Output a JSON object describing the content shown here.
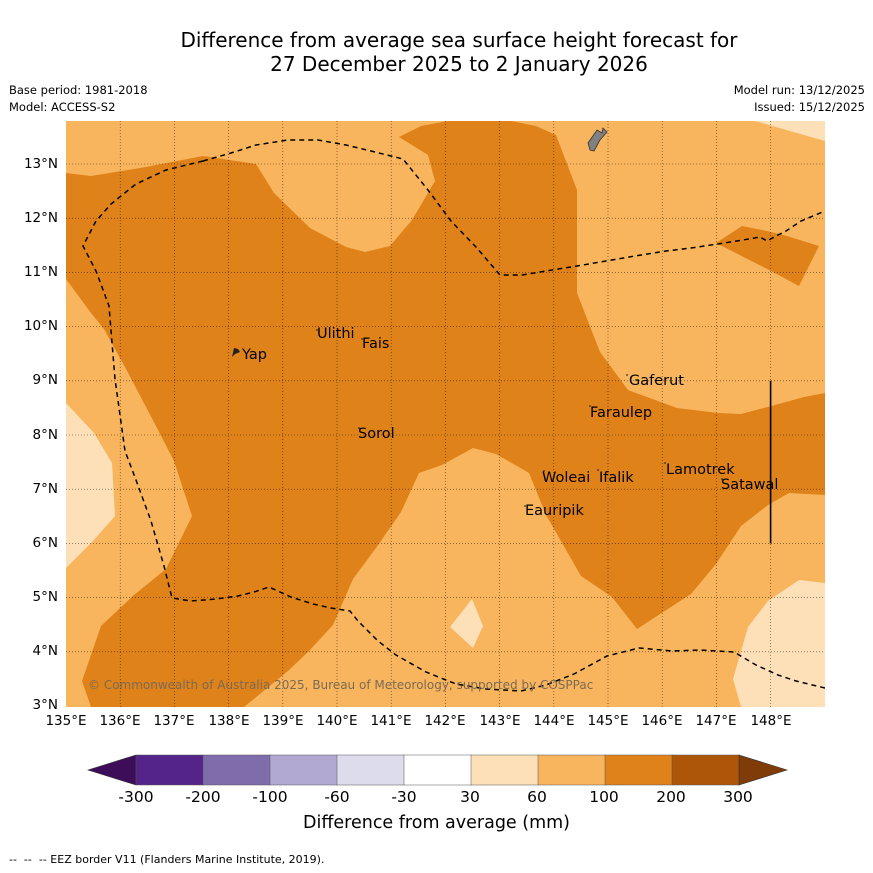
{
  "title": {
    "line1": "Difference from average sea surface height forecast for",
    "line2": "27 December 2025 to 2 January 2026"
  },
  "meta": {
    "base_period": "Base period: 1981-2018",
    "model": "Model: ACCESS-S2",
    "model_run": "Model run: 13/12/2025",
    "issued": "Issued: 15/12/2025"
  },
  "map": {
    "lat_labels": [
      "13°N",
      "12°N",
      "11°N",
      "10°N",
      "9°N",
      "8°N",
      "7°N",
      "6°N",
      "5°N",
      "4°N",
      "3°N"
    ],
    "lon_labels": [
      "135°E",
      "136°E",
      "137°E",
      "138°E",
      "139°E",
      "140°E",
      "141°E",
      "142°E",
      "143°E",
      "144°E",
      "145°E",
      "146°E",
      "147°E",
      "148°E"
    ],
    "places": [
      "Yap",
      "Ulithi",
      "Fais",
      "Sorol",
      "Gaferut",
      "Faraulep",
      "Woleai",
      "Ifalik",
      "Lamotrek",
      "Satawal",
      "Eauripik"
    ],
    "copyright": "© Commonwealth of Australia 2025, Bureau of Meteorology, supported by COSPPac",
    "fill_colors": {
      "c30_60": "#fde0b8",
      "c60_100": "#f9b55d",
      "c100_200": "#e0821a",
      "land": "#808080"
    }
  },
  "colorbar": {
    "ticks": [
      "-300",
      "-200",
      "-100",
      "-60",
      "-30",
      "30",
      "60",
      "100",
      "200",
      "300"
    ],
    "colors": [
      "#3d0d59",
      "#54248a",
      "#7f6cab",
      "#b1a9d2",
      "#dcdcec",
      "#ffffff",
      "#fde0b8",
      "#f9b55d",
      "#e0821a",
      "#ad5609",
      "#7f3b08"
    ],
    "label": "Difference from average (mm)"
  },
  "footnote": "--  --  -- EEZ border V11 (Flanders Marine Institute, 2019)."
}
